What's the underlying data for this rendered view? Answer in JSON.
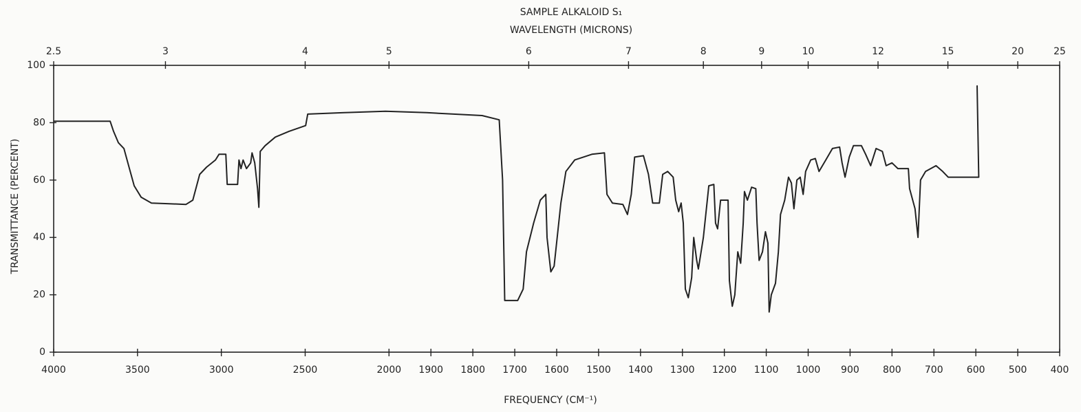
{
  "chart_data": {
    "type": "line",
    "title": "SAMPLE ALKALOID S₁",
    "x2label": "WAVELENGTH (MICRONS)",
    "xlabel": "FREQUENCY (CM⁻¹)",
    "ylabel": "TRANSMITTANCE (PERCENT)",
    "xlim": [
      4000,
      400
    ],
    "xbreak": 2000,
    "xticks": [
      4000,
      3500,
      3000,
      2500,
      2000,
      1900,
      1800,
      1700,
      1600,
      1500,
      1400,
      1300,
      1200,
      1100,
      1000,
      900,
      800,
      700,
      600,
      500,
      400
    ],
    "x2ticks": [
      2.5,
      3,
      4,
      5,
      6,
      7,
      8,
      9,
      10,
      12,
      15,
      20,
      25
    ],
    "ylim": [
      0,
      100
    ],
    "yticks": [
      0,
      20,
      40,
      60,
      80,
      100
    ],
    "color": "#222222",
    "x": [
      4000,
      3663,
      3643,
      3614,
      3581,
      3548,
      3520,
      3478,
      3417,
      3335,
      3211,
      3170,
      3129,
      3088,
      3035,
      3014,
      2973,
      2965,
      2903,
      2895,
      2883,
      2870,
      2850,
      2825,
      2817,
      2801,
      2784,
      2776,
      2768,
      2739,
      2678,
      2596,
      2497,
      2485,
      2267,
      2021,
      1910,
      1778,
      1737,
      1729,
      1724,
      1693,
      1680,
      1672,
      1655,
      1639,
      1626,
      1623,
      1614,
      1606,
      1590,
      1578,
      1557,
      1516,
      1486,
      1480,
      1467,
      1442,
      1431,
      1422,
      1414,
      1393,
      1381,
      1371,
      1355,
      1347,
      1335,
      1322,
      1316,
      1309,
      1303,
      1298,
      1293,
      1286,
      1278,
      1273,
      1266,
      1262,
      1250,
      1237,
      1225,
      1221,
      1216,
      1209,
      1191,
      1188,
      1181,
      1175,
      1168,
      1161,
      1155,
      1152,
      1145,
      1135,
      1125,
      1122,
      1117,
      1109,
      1102,
      1096,
      1093,
      1088,
      1078,
      1071,
      1066,
      1056,
      1047,
      1040,
      1034,
      1027,
      1019,
      1012,
      1006,
      994,
      983,
      974,
      958,
      942,
      925,
      919,
      912,
      902,
      892,
      873,
      863,
      851,
      838,
      823,
      814,
      800,
      786,
      761,
      758,
      745,
      738,
      732,
      720,
      695,
      679,
      666,
      598,
      593,
      597
    ],
    "values": [
      80.5,
      80.5,
      77,
      73,
      71,
      64,
      58,
      54,
      52,
      51.8,
      51.5,
      53,
      62,
      64.5,
      67,
      69,
      69,
      58.5,
      58.5,
      67,
      64,
      67,
      64,
      66,
      69.5,
      66,
      57,
      50.5,
      70,
      72,
      75,
      77,
      79,
      83,
      83.5,
      84,
      83.5,
      82.5,
      81,
      60,
      18,
      18,
      22,
      35,
      45,
      53,
      55,
      40,
      28,
      30,
      52,
      63,
      67,
      69,
      69.5,
      55,
      52,
      51.5,
      48,
      55,
      68,
      68.5,
      62,
      52,
      52,
      62,
      63,
      61,
      53,
      49,
      52,
      45,
      22,
      19,
      26,
      40,
      32,
      29,
      40,
      58,
      58.5,
      45,
      43,
      53,
      53,
      25,
      16,
      20,
      35,
      31,
      45,
      56,
      53,
      57.5,
      57,
      45,
      32,
      35,
      42,
      38,
      14,
      20,
      24,
      35,
      48,
      53,
      61,
      59,
      50,
      60,
      61,
      55,
      63,
      67,
      67.5,
      63,
      67,
      71,
      71.5,
      66,
      61,
      68,
      72,
      72,
      69,
      65,
      71,
      70,
      65,
      66,
      64,
      64,
      57,
      50,
      40,
      60,
      63,
      65,
      63,
      61,
      61,
      61,
      93
    ]
  }
}
